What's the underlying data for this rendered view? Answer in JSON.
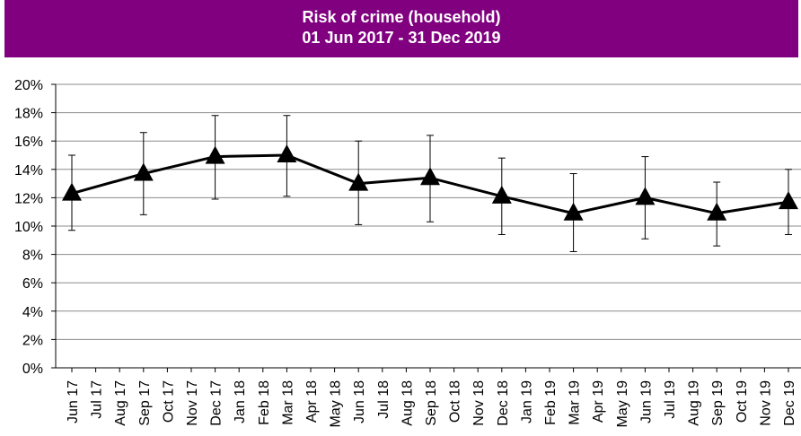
{
  "chart_data": {
    "type": "line",
    "title": "Risk of crime (household)",
    "subtitle": "01 Jun 2017 - 31 Dec 2019",
    "xlabel": "",
    "ylabel": "",
    "ylim": [
      0,
      20
    ],
    "y_ticks": [
      "0%",
      "2%",
      "4%",
      "6%",
      "8%",
      "10%",
      "12%",
      "14%",
      "16%",
      "18%",
      "20%"
    ],
    "grid": true,
    "legend": "none",
    "categories": [
      "Jun 17",
      "Jul 17",
      "Aug 17",
      "Sep 17",
      "Oct 17",
      "Nov 17",
      "Dec 17",
      "Jan 18",
      "Feb 18",
      "Mar 18",
      "Apr 18",
      "May 18",
      "Jun 18",
      "Jul 18",
      "Aug 18",
      "Sep 18",
      "Oct 18",
      "Nov 18",
      "Dec 18",
      "Jan 19",
      "Feb 19",
      "Mar 19",
      "Apr 19",
      "May 19",
      "Jun 19",
      "Jul 19",
      "Aug 19",
      "Sep 19",
      "Oct 19",
      "Nov 19",
      "Dec 19"
    ],
    "series": [
      {
        "name": "",
        "color": "#000000",
        "marker": "triangle",
        "points": [
          {
            "x": "Jun 17",
            "y": 12.3,
            "lower": 9.7,
            "upper": 15.0
          },
          {
            "x": "Sep 17",
            "y": 13.7,
            "lower": 10.8,
            "upper": 16.6
          },
          {
            "x": "Dec 17",
            "y": 14.9,
            "lower": 11.9,
            "upper": 17.8
          },
          {
            "x": "Mar 18",
            "y": 15.0,
            "lower": 12.1,
            "upper": 17.8
          },
          {
            "x": "Jun 18",
            "y": 13.0,
            "lower": 10.1,
            "upper": 16.0
          },
          {
            "x": "Sep 18",
            "y": 13.4,
            "lower": 10.3,
            "upper": 16.4
          },
          {
            "x": "Dec 18",
            "y": 12.1,
            "lower": 9.4,
            "upper": 14.8
          },
          {
            "x": "Mar 19",
            "y": 10.9,
            "lower": 8.2,
            "upper": 13.7
          },
          {
            "x": "Jun 19",
            "y": 12.0,
            "lower": 9.1,
            "upper": 14.9
          },
          {
            "x": "Sep 19",
            "y": 10.9,
            "lower": 8.6,
            "upper": 13.1
          },
          {
            "x": "Dec 19",
            "y": 11.7,
            "lower": 9.4,
            "upper": 14.0
          }
        ]
      }
    ]
  }
}
